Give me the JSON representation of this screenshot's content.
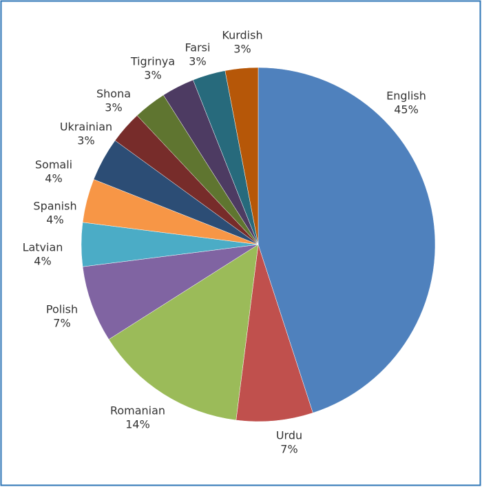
{
  "chart_data": {
    "type": "pie",
    "categories": [
      "English",
      "Urdu",
      "Romanian",
      "Polish",
      "Latvian",
      "Spanish",
      "Somali",
      "Ukrainian",
      "Shona",
      "Tigrinya",
      "Farsi",
      "Kurdish"
    ],
    "values": [
      45,
      7,
      14,
      7,
      4,
      4,
      4,
      3,
      3,
      3,
      3,
      3
    ],
    "value_labels": [
      "45%",
      "7%",
      "14%",
      "7%",
      "4%",
      "4%",
      "4%",
      "3%",
      "3%",
      "3%",
      "3%",
      "3%"
    ],
    "colors": [
      "#4f81bd",
      "#c0504d",
      "#9bbb59",
      "#8064a2",
      "#4bacc6",
      "#f79646",
      "#2c4d75",
      "#772c2a",
      "#5f7530",
      "#4d3b62",
      "#276a7c",
      "#b65708"
    ]
  }
}
